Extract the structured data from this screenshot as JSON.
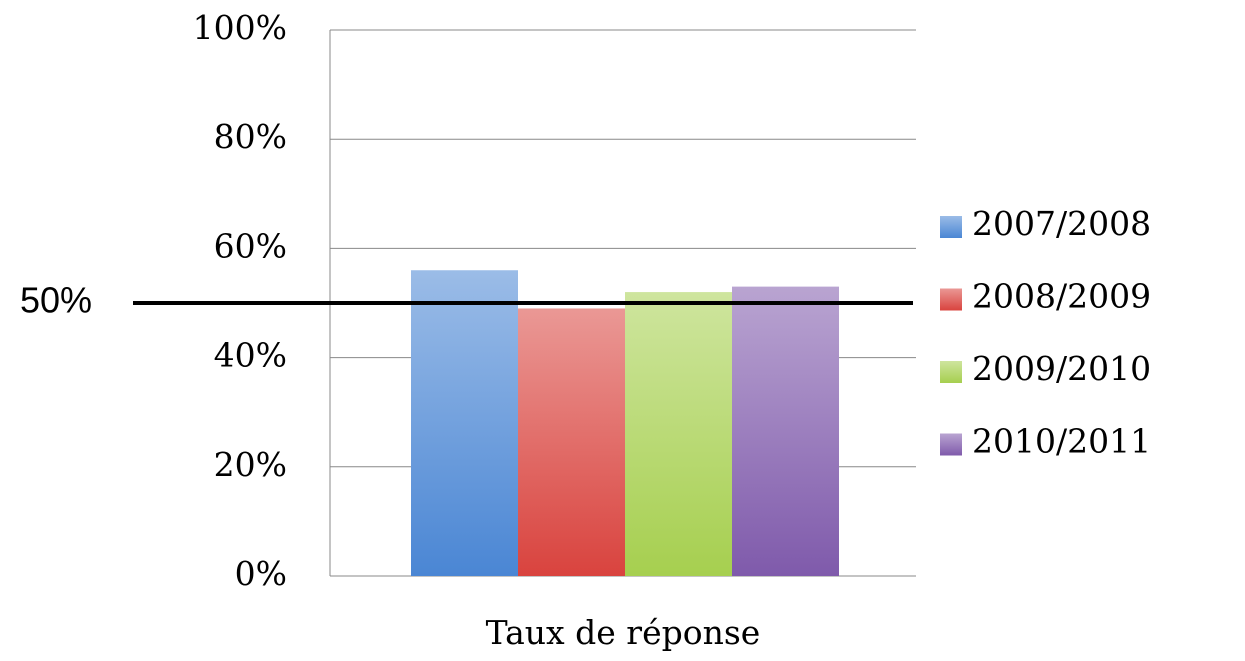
{
  "chart_data": {
    "type": "bar",
    "categories": [
      "Taux de réponse"
    ],
    "series": [
      {
        "name": "2007/2008",
        "color": "#4a86d4",
        "values": [
          56
        ]
      },
      {
        "name": "2008/2009",
        "color": "#d9433e",
        "values": [
          49
        ]
      },
      {
        "name": "2009/2010",
        "color": "#a6cf4f",
        "values": [
          52
        ]
      },
      {
        "name": "2010/2011",
        "color": "#7f5aab",
        "values": [
          53
        ]
      }
    ],
    "ylim": [
      0,
      100
    ],
    "yticks": [
      {
        "value": 0,
        "label": "0%"
      },
      {
        "value": 20,
        "label": "20%"
      },
      {
        "value": 40,
        "label": "40%"
      },
      {
        "value": 60,
        "label": "60%"
      },
      {
        "value": 80,
        "label": "80%"
      },
      {
        "value": 100,
        "label": "100%"
      }
    ],
    "grid": true,
    "legend": "right",
    "reference_line": {
      "value": 50,
      "label": "50%"
    }
  }
}
